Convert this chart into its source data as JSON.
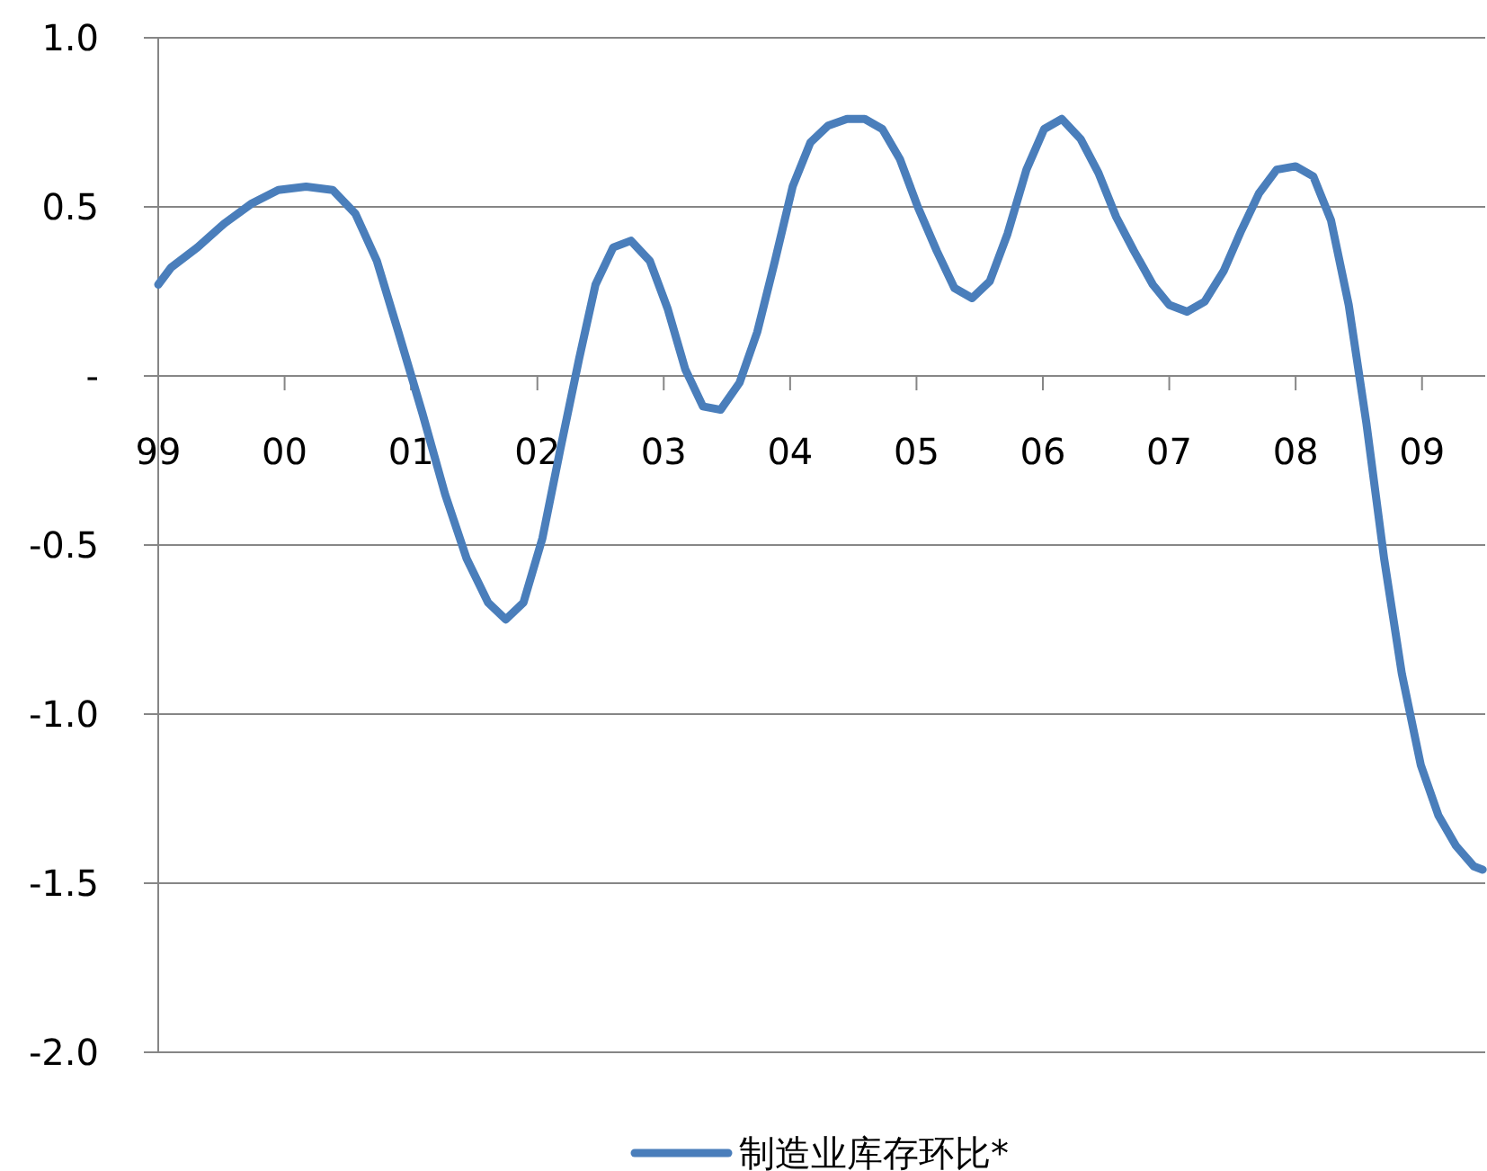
{
  "chart_data": {
    "type": "line",
    "xlim": [
      1999,
      2009.5
    ],
    "ylim": [
      -2.0,
      1.0
    ],
    "xticks": [
      {
        "value": 1999,
        "label": "99"
      },
      {
        "value": 2000,
        "label": "00"
      },
      {
        "value": 2001,
        "label": "01"
      },
      {
        "value": 2002,
        "label": "02"
      },
      {
        "value": 2003,
        "label": "03"
      },
      {
        "value": 2004,
        "label": "04"
      },
      {
        "value": 2005,
        "label": "05"
      },
      {
        "value": 2006,
        "label": "06"
      },
      {
        "value": 2007,
        "label": "07"
      },
      {
        "value": 2008,
        "label": "08"
      },
      {
        "value": 2009,
        "label": "09"
      }
    ],
    "yticks": [
      {
        "value": -2.0,
        "label": "-2.0"
      },
      {
        "value": -1.5,
        "label": "-1.5"
      },
      {
        "value": -1.0,
        "label": "-1.0"
      },
      {
        "value": -0.5,
        "label": "-0.5"
      },
      {
        "value": 0,
        "label": "-"
      },
      {
        "value": 0.5,
        "label": "0.5"
      },
      {
        "value": 1.0,
        "label": "1.0"
      }
    ],
    "grid": "y",
    "legend": "bottom",
    "series": [
      {
        "name": "制造业库存环比*",
        "color": "#4a7ebb",
        "x": [
          1999.0,
          1999.1,
          1999.31,
          1999.52,
          1999.74,
          1999.95,
          2000.17,
          2000.38,
          2000.56,
          2000.73,
          2000.9,
          2001.09,
          2001.27,
          2001.44,
          2001.61,
          2001.75,
          2001.89,
          2002.04,
          2002.18,
          2002.33,
          2002.46,
          2002.6,
          2002.74,
          2002.89,
          2003.03,
          2003.17,
          2003.31,
          2003.45,
          2003.6,
          2003.74,
          2003.88,
          2004.02,
          2004.16,
          2004.3,
          2004.45,
          2004.59,
          2004.73,
          2004.87,
          2005.01,
          2005.16,
          2005.3,
          2005.44,
          2005.58,
          2005.72,
          2005.87,
          2006.01,
          2006.15,
          2006.3,
          2006.44,
          2006.58,
          2006.72,
          2006.87,
          2007.0,
          2007.14,
          2007.28,
          2007.43,
          2007.57,
          2007.71,
          2007.85,
          2008.0,
          2008.14,
          2008.28,
          2008.42,
          2008.56,
          2008.7,
          2008.84,
          2008.99,
          2009.13,
          2009.27,
          2009.41,
          2009.48
        ],
        "values": [
          0.27,
          0.32,
          0.38,
          0.45,
          0.51,
          0.55,
          0.56,
          0.55,
          0.48,
          0.34,
          0.13,
          -0.11,
          -0.35,
          -0.54,
          -0.67,
          -0.72,
          -0.67,
          -0.48,
          -0.22,
          0.05,
          0.27,
          0.38,
          0.4,
          0.34,
          0.2,
          0.02,
          -0.09,
          -0.1,
          -0.02,
          0.13,
          0.34,
          0.56,
          0.69,
          0.74,
          0.76,
          0.76,
          0.73,
          0.64,
          0.5,
          0.37,
          0.26,
          0.23,
          0.28,
          0.42,
          0.61,
          0.73,
          0.76,
          0.7,
          0.6,
          0.47,
          0.37,
          0.27,
          0.21,
          0.19,
          0.22,
          0.31,
          0.43,
          0.54,
          0.61,
          0.62,
          0.59,
          0.46,
          0.21,
          -0.14,
          -0.54,
          -0.88,
          -1.15,
          -1.3,
          -1.39,
          -1.45,
          -1.46
        ]
      }
    ]
  }
}
